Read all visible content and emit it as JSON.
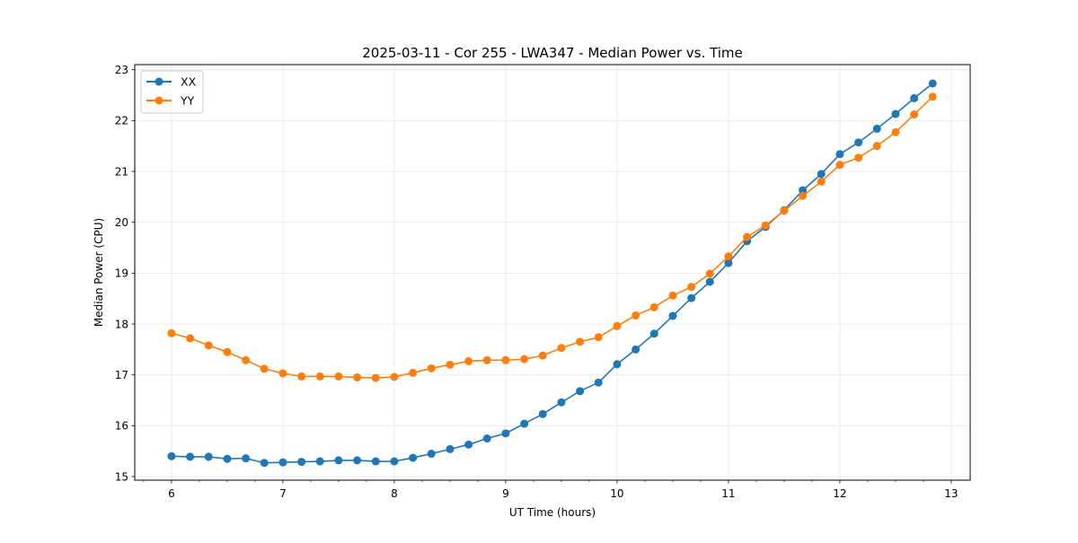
{
  "chart_data": {
    "type": "line",
    "title": "2025-03-11 - Cor 255 - LWA347 - Median Power vs. Time",
    "xlabel": "UT Time (hours)",
    "ylabel": "Median Power (CPU)",
    "xlim": [
      5.67,
      13.17
    ],
    "ylim": [
      14.93,
      23.1
    ],
    "grid": true,
    "legend": "top-left",
    "x_ticks": [
      6,
      7,
      8,
      9,
      10,
      11,
      12,
      13
    ],
    "y_ticks": [
      15,
      16,
      17,
      18,
      19,
      20,
      21,
      22,
      23
    ],
    "x": [
      6.0,
      6.167,
      6.333,
      6.5,
      6.667,
      6.833,
      7.0,
      7.167,
      7.333,
      7.5,
      7.667,
      7.833,
      8.0,
      8.167,
      8.333,
      8.5,
      8.667,
      8.833,
      9.0,
      9.167,
      9.333,
      9.5,
      9.667,
      9.833,
      10.0,
      10.167,
      10.333,
      10.5,
      10.667,
      10.833,
      11.0,
      11.167,
      11.333,
      11.5,
      11.667,
      11.833,
      12.0,
      12.167,
      12.333,
      12.5,
      12.667,
      12.833
    ],
    "series": [
      {
        "name": "XX",
        "color": "#1f77b4",
        "values": [
          15.4,
          15.39,
          15.39,
          15.35,
          15.36,
          15.27,
          15.28,
          15.29,
          15.3,
          15.32,
          15.32,
          15.3,
          15.3,
          15.37,
          15.45,
          15.54,
          15.63,
          15.75,
          15.85,
          16.04,
          16.23,
          16.46,
          16.68,
          16.85,
          17.21,
          17.5,
          17.81,
          18.16,
          18.51,
          18.83,
          19.2,
          19.63,
          19.91,
          20.24,
          20.63,
          20.95,
          21.34,
          21.57,
          21.84,
          22.13,
          22.44,
          22.73
        ]
      },
      {
        "name": "YY",
        "color": "#ff7f0e",
        "values": [
          17.82,
          17.72,
          17.58,
          17.45,
          17.29,
          17.12,
          17.03,
          16.97,
          16.97,
          16.97,
          16.95,
          16.94,
          16.96,
          17.04,
          17.13,
          17.2,
          17.27,
          17.29,
          17.29,
          17.31,
          17.38,
          17.53,
          17.65,
          17.74,
          17.96,
          18.17,
          18.33,
          18.56,
          18.73,
          18.99,
          19.33,
          19.71,
          19.94,
          20.23,
          20.52,
          20.8,
          21.13,
          21.27,
          21.5,
          21.77,
          22.12,
          22.47
        ]
      }
    ]
  }
}
